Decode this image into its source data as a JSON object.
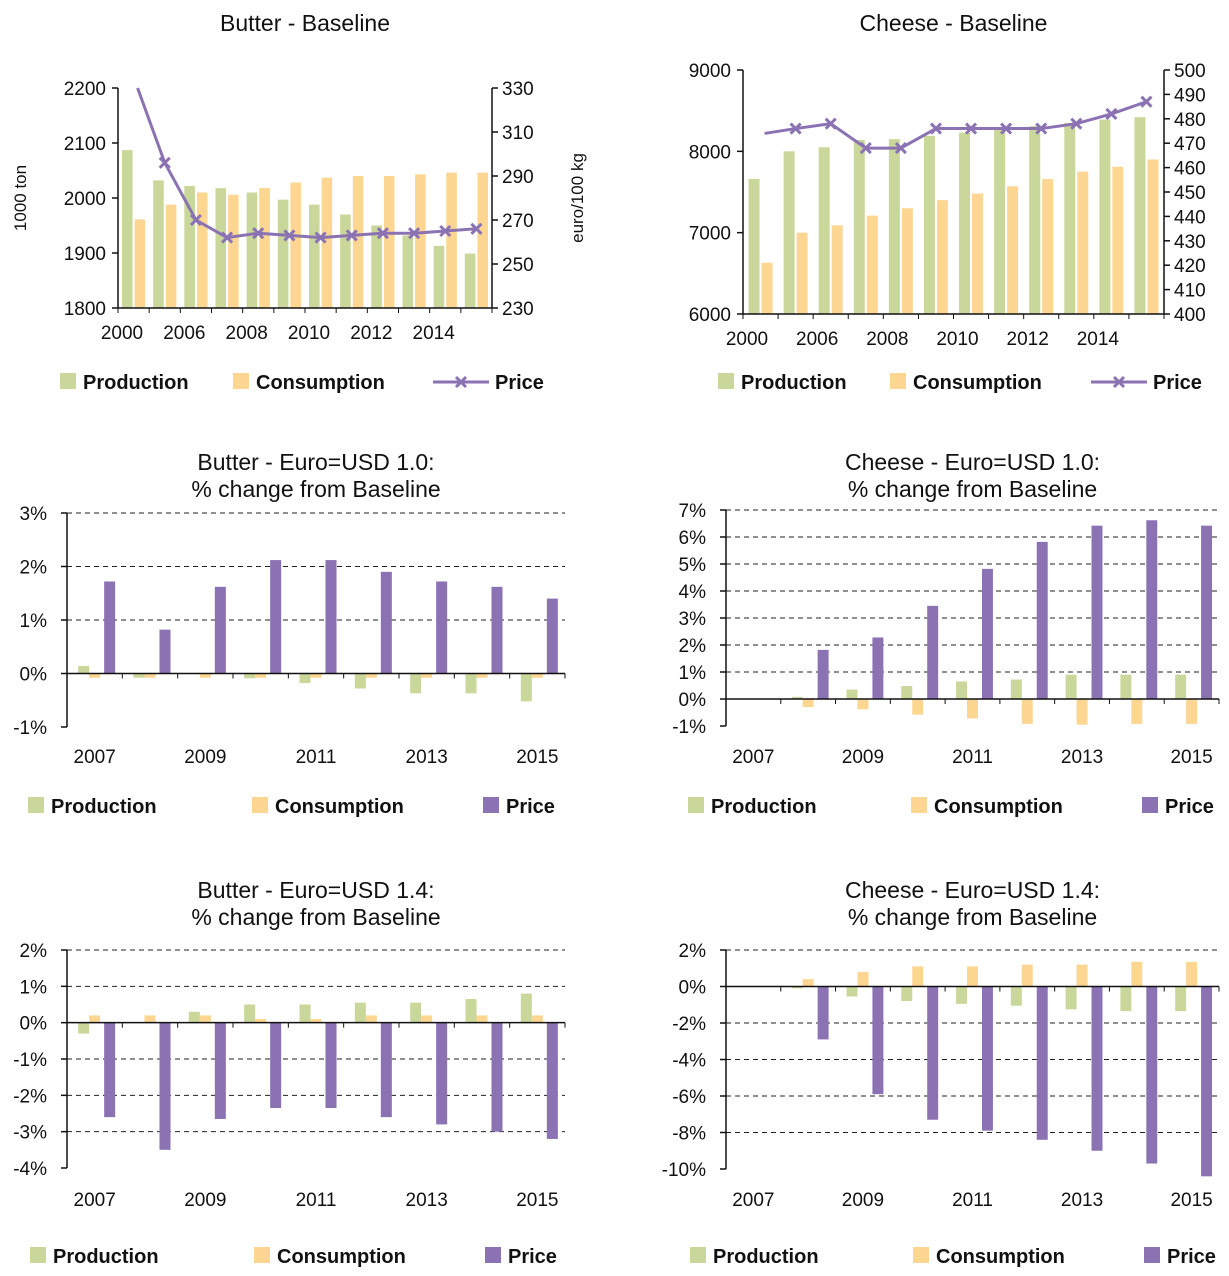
{
  "colors": {
    "production": "#cad79a",
    "consumption": "#fdd692",
    "price": "#8a72b3"
  },
  "legend": {
    "production": "Production",
    "consumption": "Consumption",
    "price": "Price"
  },
  "chart_data": [
    {
      "type": "bar+line",
      "title": "Butter - Baseline",
      "ylabel": "1000 ton",
      "y2label": "euro/100 kg",
      "ylim": [
        1800,
        2200
      ],
      "y2lim": [
        230,
        330
      ],
      "yticks": [
        "2200",
        "2100",
        "2000",
        "1900",
        "1800"
      ],
      "y2ticks": [
        "330",
        "310",
        "290",
        "270",
        "250",
        "230"
      ],
      "x": [
        2000,
        2005,
        2006,
        2007,
        2008,
        2009,
        2010,
        2011,
        2012,
        2013,
        2014,
        2015
      ],
      "xtick_labels": [
        "2000",
        "2006",
        "2008",
        "2010",
        "2012",
        "2014"
      ],
      "series": [
        {
          "name": "Production",
          "kind": "bar",
          "axis": "left",
          "values": [
            2087,
            2032,
            2022,
            2018,
            2010,
            1997,
            1988,
            1970,
            1950,
            1932,
            1913,
            1899
          ]
        },
        {
          "name": "Consumption",
          "kind": "bar",
          "axis": "left",
          "values": [
            1961,
            1988,
            2010,
            2006,
            2018,
            2028,
            2037,
            2040,
            2040,
            2043,
            2046,
            2046
          ]
        },
        {
          "name": "Price",
          "kind": "line",
          "axis": "right",
          "values": [
            330,
            296,
            270,
            262,
            264,
            263,
            262,
            263,
            264,
            264,
            265,
            266
          ]
        }
      ]
    },
    {
      "type": "bar+line",
      "title": "Cheese - Baseline",
      "ylim": [
        6000,
        9000
      ],
      "y2lim": [
        400,
        500
      ],
      "yticks": [
        "9000",
        "8000",
        "7000",
        "6000"
      ],
      "y2ticks": [
        "500",
        "490",
        "480",
        "470",
        "460",
        "450",
        "440",
        "430",
        "420",
        "410",
        "400"
      ],
      "x": [
        2000,
        2005,
        2006,
        2007,
        2008,
        2009,
        2010,
        2011,
        2012,
        2013,
        2014,
        2015
      ],
      "xtick_labels": [
        "2000",
        "2006",
        "2008",
        "2010",
        "2012",
        "2014"
      ],
      "series": [
        {
          "name": "Production",
          "kind": "bar",
          "axis": "left",
          "values": [
            7660,
            8000,
            8050,
            8140,
            8150,
            8190,
            8230,
            8270,
            8310,
            8350,
            8390,
            8420
          ]
        },
        {
          "name": "Consumption",
          "kind": "bar",
          "axis": "left",
          "values": [
            6630,
            7000,
            7090,
            7210,
            7300,
            7400,
            7480,
            7570,
            7660,
            7750,
            7810,
            7900
          ]
        },
        {
          "name": "Price",
          "kind": "line",
          "axis": "right",
          "values": [
            474,
            476,
            478,
            468,
            468,
            476,
            476,
            476,
            476,
            478,
            482,
            487
          ]
        }
      ]
    },
    {
      "type": "bar",
      "title": [
        "Butter - Euro=USD 1.0:",
        "% change from Baseline"
      ],
      "ylim": [
        -1,
        3
      ],
      "yticks": [
        "3%",
        "2%",
        "1%",
        "0%",
        "-1%"
      ],
      "categories": [
        "2007",
        "2008",
        "2009",
        "2010",
        "2011",
        "2012",
        "2013",
        "2014",
        "2015"
      ],
      "xtick_labels": [
        "2007",
        "2009",
        "2011",
        "2013",
        "2015"
      ],
      "series": [
        {
          "name": "Production",
          "values": [
            0.14,
            -0.08,
            0.0,
            -0.09,
            -0.18,
            -0.28,
            -0.37,
            -0.37,
            -0.52
          ]
        },
        {
          "name": "Consumption",
          "values": [
            -0.08,
            -0.08,
            -0.08,
            -0.08,
            -0.08,
            -0.08,
            -0.08,
            -0.08,
            -0.08
          ]
        },
        {
          "name": "Price",
          "values": [
            1.72,
            0.82,
            1.62,
            2.12,
            2.12,
            1.9,
            1.72,
            1.62,
            1.4
          ]
        }
      ]
    },
    {
      "type": "bar",
      "title": [
        "Cheese - Euro=USD 1.0:",
        "% change from Baseline"
      ],
      "ylim": [
        -1,
        7
      ],
      "yticks": [
        "7%",
        "6%",
        "5%",
        "4%",
        "3%",
        "2%",
        "1%",
        "0%",
        "-1%"
      ],
      "categories": [
        "2007",
        "2008",
        "2009",
        "2010",
        "2011",
        "2012",
        "2013",
        "2014",
        "2015"
      ],
      "xtick_labels": [
        "2007",
        "2009",
        "2011",
        "2013",
        "2015"
      ],
      "series": [
        {
          "name": "Production",
          "values": [
            0.0,
            0.08,
            0.35,
            0.48,
            0.65,
            0.72,
            0.9,
            0.9,
            0.9
          ]
        },
        {
          "name": "Consumption",
          "values": [
            0.0,
            -0.3,
            -0.38,
            -0.58,
            -0.72,
            -0.92,
            -0.95,
            -0.92,
            -0.92
          ]
        },
        {
          "name": "Price",
          "values": [
            0.0,
            1.82,
            2.28,
            3.45,
            4.82,
            5.82,
            6.42,
            6.62,
            6.42
          ]
        }
      ]
    },
    {
      "type": "bar",
      "title": [
        "Butter - Euro=USD 1.4:",
        "% change from Baseline"
      ],
      "ylim": [
        -4,
        2
      ],
      "yticks": [
        "2%",
        "1%",
        "0%",
        "-1%",
        "-2%",
        "-3%",
        "-4%"
      ],
      "categories": [
        "2007",
        "2008",
        "2009",
        "2010",
        "2011",
        "2012",
        "2013",
        "2014",
        "2015"
      ],
      "xtick_labels": [
        "2007",
        "2009",
        "2011",
        "2013",
        "2015"
      ],
      "series": [
        {
          "name": "Production",
          "values": [
            -0.3,
            0.0,
            0.3,
            0.5,
            0.5,
            0.55,
            0.55,
            0.65,
            0.8
          ]
        },
        {
          "name": "Consumption",
          "values": [
            0.2,
            0.2,
            0.2,
            0.1,
            0.1,
            0.2,
            0.2,
            0.2,
            0.2
          ]
        },
        {
          "name": "Price",
          "values": [
            -2.6,
            -3.5,
            -2.65,
            -2.35,
            -2.35,
            -2.6,
            -2.8,
            -3.0,
            -3.2
          ]
        }
      ]
    },
    {
      "type": "bar",
      "title": [
        "Cheese - Euro=USD 1.4:",
        "% change from Baseline"
      ],
      "ylim": [
        -10,
        2
      ],
      "yticks": [
        "2%",
        "0%",
        "-2%",
        "-4%",
        "-6%",
        "-8%",
        "-10%"
      ],
      "categories": [
        "2007",
        "2008",
        "2009",
        "2010",
        "2011",
        "2012",
        "2013",
        "2014",
        "2015"
      ],
      "xtick_labels": [
        "2007",
        "2009",
        "2011",
        "2013",
        "2015"
      ],
      "series": [
        {
          "name": "Production",
          "values": [
            0.0,
            -0.1,
            -0.55,
            -0.8,
            -0.95,
            -1.05,
            -1.25,
            -1.35,
            -1.35
          ]
        },
        {
          "name": "Consumption",
          "values": [
            0.0,
            0.4,
            0.8,
            1.1,
            1.1,
            1.2,
            1.2,
            1.35,
            1.35
          ]
        },
        {
          "name": "Price",
          "values": [
            0.0,
            -2.9,
            -5.9,
            -7.3,
            -7.9,
            -8.4,
            -9.0,
            -9.7,
            -10.4
          ]
        }
      ]
    }
  ]
}
